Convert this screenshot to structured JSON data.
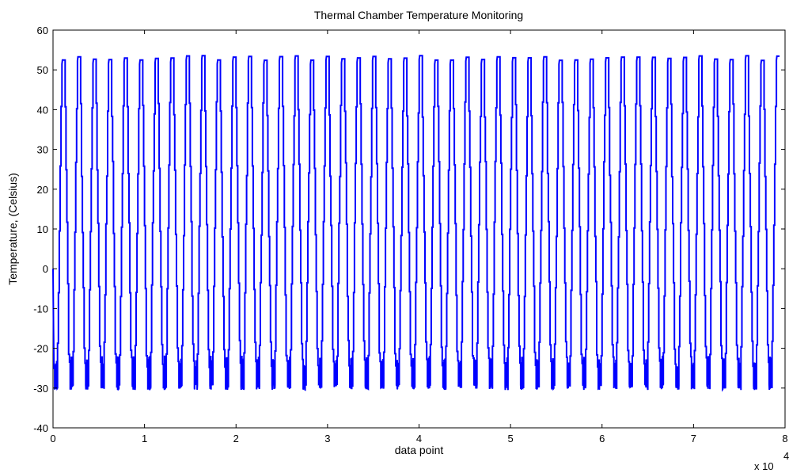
{
  "chart_data": {
    "type": "line",
    "title": "Thermal Chamber Temperature Monitoring",
    "xlabel": "data point",
    "ylabel": "Temperature, (Celsius)",
    "x_multiplier_label": "x 10",
    "x_multiplier_exponent": "4",
    "xlim": [
      0,
      8
    ],
    "ylim": [
      -40,
      60
    ],
    "x_ticks": [
      "0",
      "1",
      "2",
      "3",
      "4",
      "5",
      "6",
      "7",
      "8"
    ],
    "y_ticks": [
      "-40",
      "-30",
      "-20",
      "-10",
      "0",
      "10",
      "20",
      "30",
      "40",
      "50",
      "60"
    ],
    "grid": false,
    "series": [
      {
        "color": "#0000ff",
        "x_end": 7.9,
        "cycle_period": 0.243,
        "cycle_count": 32.5,
        "max_temp": 53,
        "min_temp": -29,
        "intermediate_steps": [
          40,
          25,
          10,
          -5,
          -20
        ]
      }
    ]
  },
  "colors": {
    "line": "#0000ff",
    "axes": "#000000",
    "background": "#ffffff"
  }
}
